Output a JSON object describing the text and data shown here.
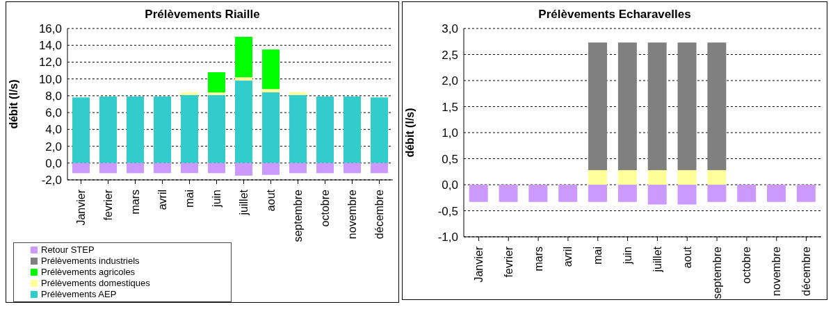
{
  "chart_data": [
    {
      "type": "bar",
      "title": "Prélèvements Riaille",
      "ylabel": "débit (l/s)",
      "stacked": true,
      "categories": [
        "Janvier",
        "fevrier",
        "mars",
        "avril",
        "mai",
        "juin",
        "juillet",
        "aout",
        "septembre",
        "octobre",
        "novembre",
        "décembre"
      ],
      "series": [
        {
          "name": "Prélèvements AEP",
          "color": "#33cccc",
          "values": [
            7.8,
            7.9,
            7.9,
            7.9,
            8.1,
            8.1,
            9.8,
            8.4,
            8.1,
            7.9,
            7.9,
            7.8
          ]
        },
        {
          "name": "Prélèvements domestiques",
          "color": "#ffff99",
          "values": [
            0,
            0,
            0,
            0,
            0.3,
            0.3,
            0.4,
            0.4,
            0.3,
            0,
            0,
            0
          ]
        },
        {
          "name": "Prélèvements agricoles",
          "color": "#00ff00",
          "values": [
            0,
            0,
            0,
            0,
            0,
            2.4,
            4.8,
            4.7,
            0,
            0,
            0,
            0
          ]
        },
        {
          "name": "Prélèvements industriels",
          "color": "#808080",
          "values": [
            0,
            0,
            0,
            0,
            0,
            0,
            0,
            0,
            0,
            0,
            0,
            0
          ]
        },
        {
          "name": "Retour STEP",
          "color": "#cc99ff",
          "values": [
            -1.2,
            -1.2,
            -1.2,
            -1.2,
            -1.2,
            -1.2,
            -1.5,
            -1.4,
            -1.2,
            -1.2,
            -1.2,
            -1.2
          ]
        }
      ],
      "ylim": [
        -2,
        16
      ],
      "yticks": [
        {
          "value": -2,
          "label": "-2,0"
        },
        {
          "value": 0,
          "label": "0,0"
        },
        {
          "value": 2,
          "label": "2,0"
        },
        {
          "value": 4,
          "label": "4,0"
        },
        {
          "value": 6,
          "label": "6,0"
        },
        {
          "value": 8,
          "label": "8,0"
        },
        {
          "value": 10,
          "label": "10,0"
        },
        {
          "value": 12,
          "label": "12,0"
        },
        {
          "value": 14,
          "label": "14,0"
        },
        {
          "value": 16,
          "label": "16,0"
        }
      ],
      "grid": "y",
      "legend": "bottom"
    },
    {
      "type": "bar",
      "title": "Prélèvements Echaravelles",
      "ylabel": "débit (l/s)",
      "stacked": true,
      "categories": [
        "Janvier",
        "fevrier",
        "mars",
        "avril",
        "mai",
        "juin",
        "juillet",
        "aout",
        "septembre",
        "octobre",
        "novembre",
        "décembre"
      ],
      "series": [
        {
          "color": "#33cccc",
          "values": [
            0,
            0,
            0,
            0,
            0,
            0,
            0,
            0,
            0,
            0,
            0,
            0
          ]
        },
        {
          "color": "#ffff99",
          "values": [
            0,
            0,
            0,
            0,
            0.28,
            0.28,
            0.28,
            0.28,
            0.28,
            0,
            0,
            0
          ]
        },
        {
          "color": "#00ff00",
          "values": [
            0,
            0,
            0,
            0,
            0,
            0,
            0,
            0,
            0,
            0,
            0,
            0
          ]
        },
        {
          "color": "#808080",
          "values": [
            0,
            0,
            0,
            0,
            2.45,
            2.45,
            2.45,
            2.45,
            2.45,
            0,
            0,
            0
          ]
        },
        {
          "color": "#cc99ff",
          "values": [
            -0.33,
            -0.33,
            -0.33,
            -0.33,
            -0.33,
            -0.33,
            -0.38,
            -0.38,
            -0.33,
            -0.33,
            -0.33,
            -0.33
          ]
        }
      ],
      "ylim": [
        -1,
        3
      ],
      "yticks": [
        {
          "value": -1,
          "label": "-1,0"
        },
        {
          "value": -0.5,
          "label": "-0,5"
        },
        {
          "value": 0,
          "label": "0,0"
        },
        {
          "value": 0.5,
          "label": "0,5"
        },
        {
          "value": 1,
          "label": "1,0"
        },
        {
          "value": 1.5,
          "label": "1,5"
        },
        {
          "value": 2,
          "label": "2,0"
        },
        {
          "value": 2.5,
          "label": "2,5"
        },
        {
          "value": 3,
          "label": "3,0"
        }
      ],
      "grid": "y",
      "legend": false
    }
  ]
}
